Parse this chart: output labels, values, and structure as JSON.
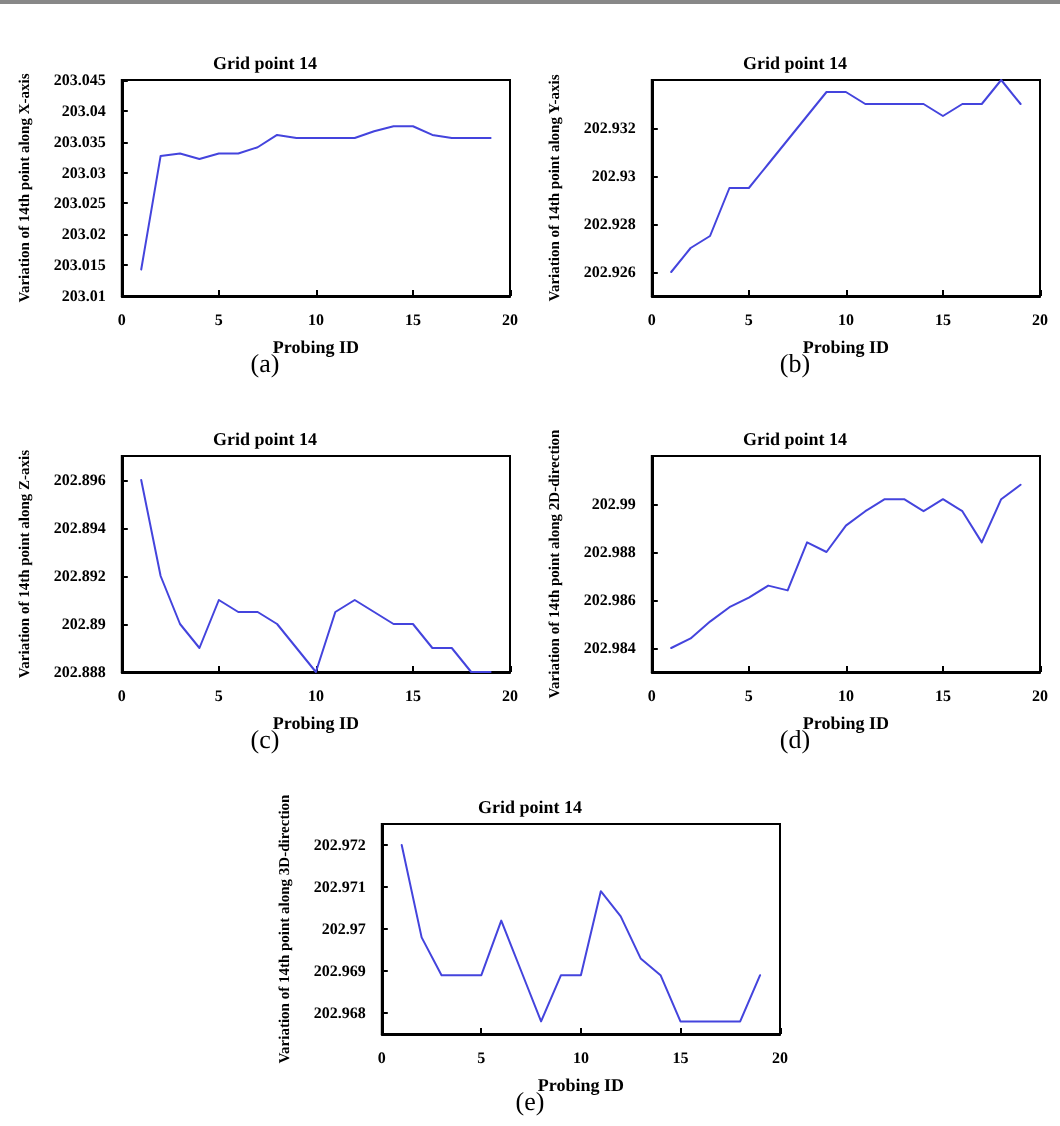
{
  "chart_data": [
    {
      "type": "line",
      "title": "Grid point 14",
      "xlabel": "Probing ID",
      "ylabel": "Variation of 14th point along X-axis",
      "annotations": [
        "(a)"
      ],
      "x": [
        1,
        2,
        3,
        4,
        5,
        6,
        7,
        8,
        9,
        10,
        11,
        12,
        13,
        14,
        15,
        16,
        17,
        18,
        19
      ],
      "series": [
        {
          "color": "#4444dd",
          "values": [
            203.0143,
            203.0327,
            203.0331,
            203.0322,
            203.0331,
            203.0331,
            203.0341,
            203.0361,
            203.0356,
            203.0356,
            203.0356,
            203.0356,
            203.0367,
            203.0375,
            203.0375,
            203.0361,
            203.0356,
            203.0356,
            203.0356
          ]
        }
      ],
      "xlim": [
        0,
        20
      ],
      "xticks": [
        0,
        5,
        10,
        15,
        20
      ],
      "ylim": [
        203.01,
        203.045
      ],
      "yticks": [
        203.01,
        203.015,
        203.02,
        203.025,
        203.03,
        203.035,
        203.04,
        203.045
      ],
      "grid": false,
      "marker": "none",
      "line_style": "solid"
    },
    {
      "type": "line",
      "title": "Grid point 14",
      "xlabel": "Probing ID",
      "ylabel": "Variation of 14th point along Y-axis",
      "annotations": [
        "(b)"
      ],
      "x": [
        1,
        2,
        3,
        4,
        5,
        6,
        7,
        8,
        9,
        10,
        11,
        12,
        13,
        14,
        15,
        16,
        17,
        18,
        19
      ],
      "series": [
        {
          "color": "#4444dd",
          "values": [
            202.926,
            202.927,
            202.9275,
            202.9295,
            202.9295,
            202.9305,
            202.9315,
            202.9325,
            202.9335,
            202.9335,
            202.933,
            202.933,
            202.933,
            202.933,
            202.9325,
            202.933,
            202.933,
            202.934,
            202.933
          ]
        }
      ],
      "xlim": [
        0,
        20
      ],
      "xticks": [
        0,
        5,
        10,
        15,
        20
      ],
      "ylim": [
        202.925,
        202.934
      ],
      "yticks": [
        202.926,
        202.928,
        202.93,
        202.932
      ],
      "grid": false,
      "marker": "none",
      "line_style": "solid"
    },
    {
      "type": "line",
      "title": "Grid point 14",
      "xlabel": "Probing ID",
      "ylabel": "Variation of 14th point along Z-axis",
      "annotations": [
        "(c)"
      ],
      "x": [
        1,
        2,
        3,
        4,
        5,
        6,
        7,
        8,
        9,
        10,
        11,
        12,
        13,
        14,
        15,
        16,
        17,
        18,
        19
      ],
      "series": [
        {
          "color": "#4444dd",
          "values": [
            202.896,
            202.892,
            202.89,
            202.889,
            202.891,
            202.8905,
            202.8905,
            202.89,
            202.889,
            202.888,
            202.8905,
            202.891,
            202.8905,
            202.89,
            202.89,
            202.889,
            202.889,
            202.888,
            202.888
          ]
        }
      ],
      "xlim": [
        0,
        20
      ],
      "xticks": [
        0,
        5,
        10,
        15,
        20
      ],
      "ylim": [
        202.888,
        202.897
      ],
      "yticks": [
        202.888,
        202.89,
        202.892,
        202.894,
        202.896
      ],
      "grid": false,
      "marker": "none",
      "line_style": "solid"
    },
    {
      "type": "line",
      "title": "Grid point 14",
      "xlabel": "Probing ID",
      "ylabel": "Variation of 14th point along 2D-direction",
      "annotations": [
        "(d)"
      ],
      "x": [
        1,
        2,
        3,
        4,
        5,
        6,
        7,
        8,
        9,
        10,
        11,
        12,
        13,
        14,
        15,
        16,
        17,
        18,
        19
      ],
      "series": [
        {
          "color": "#4444dd",
          "values": [
            202.984,
            202.9844,
            202.9851,
            202.9857,
            202.9861,
            202.9866,
            202.9864,
            202.9884,
            202.988,
            202.9891,
            202.9897,
            202.9902,
            202.9902,
            202.9897,
            202.9902,
            202.9897,
            202.9884,
            202.9902,
            202.9908
          ]
        }
      ],
      "xlim": [
        0,
        20
      ],
      "xticks": [
        0,
        5,
        10,
        15,
        20
      ],
      "ylim": [
        202.983,
        202.992
      ],
      "yticks": [
        202.984,
        202.986,
        202.988,
        202.99
      ],
      "grid": false,
      "marker": "none",
      "line_style": "solid"
    },
    {
      "type": "line",
      "title": "Grid point 14",
      "xlabel": "Probing ID",
      "ylabel": "Variation of 14th point along 3D-direction",
      "annotations": [
        "(e)"
      ],
      "x": [
        1,
        2,
        3,
        4,
        5,
        6,
        7,
        8,
        9,
        10,
        11,
        12,
        13,
        14,
        15,
        16,
        17,
        18,
        19
      ],
      "series": [
        {
          "color": "#4444dd",
          "values": [
            202.972,
            202.9698,
            202.9689,
            202.9689,
            202.9689,
            202.9702,
            202.969,
            202.9678,
            202.9689,
            202.9689,
            202.9709,
            202.9703,
            202.9693,
            202.9689,
            202.9678,
            202.9678,
            202.9678,
            202.9678,
            202.9689
          ]
        }
      ],
      "xlim": [
        0,
        20
      ],
      "xticks": [
        0,
        5,
        10,
        15,
        20
      ],
      "ylim": [
        202.9675,
        202.9725
      ],
      "yticks": [
        202.968,
        202.969,
        202.97,
        202.971,
        202.972
      ],
      "grid": false,
      "marker": "none",
      "line_style": "solid"
    }
  ]
}
